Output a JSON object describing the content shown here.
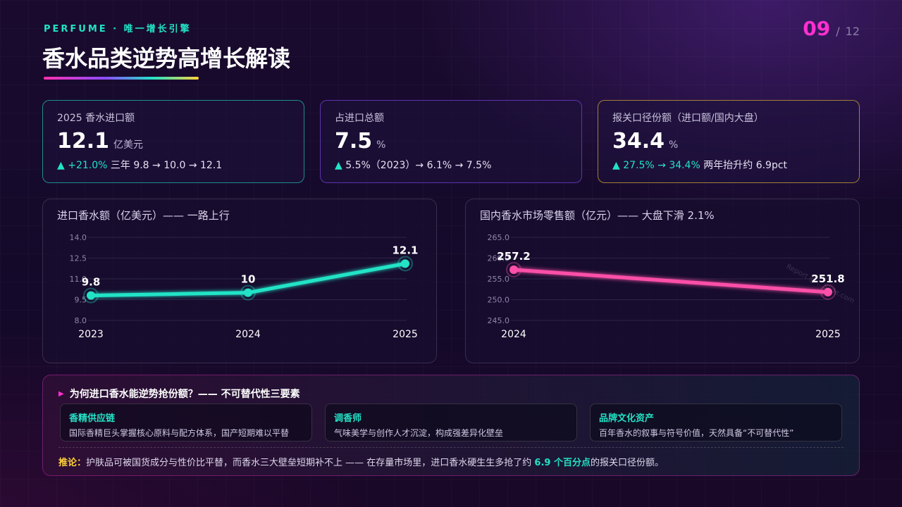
{
  "header": {
    "kicker": "PERFUME · 唯一增长引擎",
    "title": "香水品类逆势高增长解读",
    "page_current": "09",
    "page_sep": "/",
    "page_total": "12"
  },
  "kpis": [
    {
      "label": "2025 香水进口额",
      "value": "12.1",
      "unit": "亿美元",
      "trend_up": "▲ +21.0%",
      "trend_rest": " 三年 9.8 → 10.0 → 12.1"
    },
    {
      "label": "占进口总额",
      "value": "7.5",
      "unit": "%",
      "trend_up": "▲",
      "trend_rest": " 5.5%（2023）→ 6.1% → 7.5%"
    },
    {
      "label": "报关口径份额（进口额/国内大盘）",
      "value": "34.4",
      "unit": "%",
      "trend_up": "▲ 27.5% → 34.4%",
      "trend_rest": " 两年抬升约 6.9pct"
    }
  ],
  "colors": {
    "teal": "#22e3c6",
    "pink": "#ff4fa8",
    "magenta": "#ff2fd0",
    "gold": "#ffd23a"
  },
  "chart_data": [
    {
      "type": "line",
      "title": "进口香水额（亿美元）—— 一路上行",
      "x": [
        "2023",
        "2024",
        "2025"
      ],
      "series": [
        {
          "values": [
            9.8,
            10.0,
            12.1
          ],
          "labels": [
            "9.8",
            "10",
            "12.1"
          ]
        }
      ],
      "ylim": [
        8.0,
        14.0
      ],
      "yticks": [
        "8.0",
        "9.5",
        "11.0",
        "12.5",
        "14.0"
      ],
      "ytick_values": [
        8.0,
        9.5,
        11.0,
        12.5,
        14.0
      ],
      "grid": true,
      "color": "#22e3c6"
    },
    {
      "type": "line",
      "title": "国内香水市场零售额（亿元）—— 大盘下滑 2.1%",
      "x": [
        "2024",
        "2025"
      ],
      "series": [
        {
          "values": [
            257.2,
            251.8
          ],
          "labels": [
            "257.2",
            "251.8"
          ]
        }
      ],
      "ylim": [
        245.0,
        265.0
      ],
      "yticks": [
        "245.0",
        "250.0",
        "255.0",
        "260.0",
        "265.0"
      ],
      "ytick_values": [
        245.0,
        250.0,
        255.0,
        260.0,
        265.0
      ],
      "grid": true,
      "color": "#ff4fa8"
    }
  ],
  "watermark": "Report @ ...Slide.com",
  "why": {
    "heading": "为何进口香水能逆势抢份额？—— 不可替代性三要素",
    "factors": [
      {
        "title": "香精供应链",
        "desc": "国际香精巨头掌握核心原料与配方体系，国产短期难以平替"
      },
      {
        "title": "调香师",
        "desc": "气味美学与创作人才沉淀，构成强差异化壁垒"
      },
      {
        "title": "品牌文化资产",
        "desc": "百年香水的叙事与符号价值，天然具备“不可替代性”"
      }
    ],
    "conclusion_label": "推论：",
    "conclusion_pre": "护肤品可被国货成分与性价比平替，而香水三大壁垒短期补不上 —— 在存量市场里，进口香水硬生生多抢了约 ",
    "conclusion_hl": "6.9 个百分点",
    "conclusion_post": "的报关口径份额。"
  }
}
